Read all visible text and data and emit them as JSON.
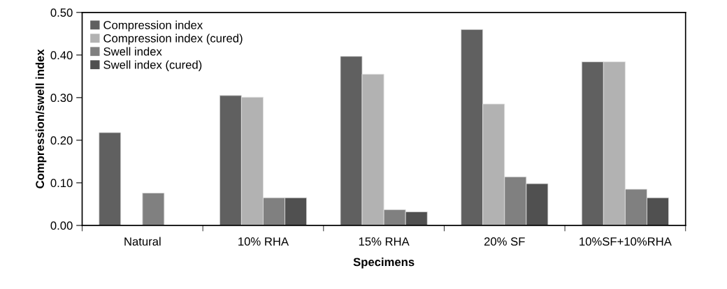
{
  "chart_data": {
    "type": "bar",
    "xlabel": "Specimens",
    "ylabel": "Compression/swell index",
    "categories": [
      "Natural",
      "10% RHA",
      "15% RHA",
      "20% SF",
      "10%SF+10%RHA"
    ],
    "series": [
      {
        "name": "Compression index",
        "color": "#606060",
        "values": [
          0.218,
          0.305,
          0.397,
          0.46,
          0.384
        ]
      },
      {
        "name": "Compression index (cured)",
        "color": "#b2b2b2",
        "values": [
          null,
          0.301,
          0.355,
          0.285,
          0.384
        ]
      },
      {
        "name": "Swell index",
        "color": "#808080",
        "values": [
          0.076,
          0.065,
          0.037,
          0.114,
          0.085
        ]
      },
      {
        "name": "Swell index (cured)",
        "color": "#505050",
        "values": [
          null,
          0.065,
          0.032,
          0.098,
          0.065
        ]
      }
    ],
    "ylim": [
      0,
      0.5
    ],
    "yticks": [
      {
        "value": 0,
        "label": "0.00"
      },
      {
        "value": 0.1,
        "label": "0.10"
      },
      {
        "value": 0.2,
        "label": "0.20"
      },
      {
        "value": 0.3,
        "label": "0.30"
      },
      {
        "value": 0.4,
        "label": "0.40"
      },
      {
        "value": 0.5,
        "label": "0.50"
      }
    ],
    "grid": false,
    "legend": "top left"
  }
}
